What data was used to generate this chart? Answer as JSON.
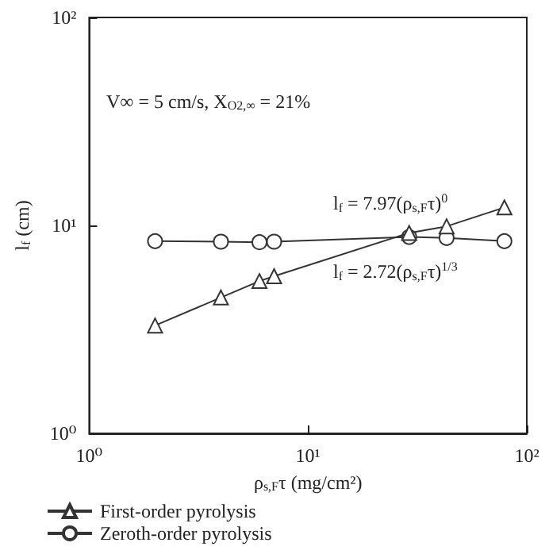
{
  "chart_data": {
    "type": "line",
    "xlabel": "ρ$_{s,F}$τ (mg/cm²)",
    "ylabel": "l$_{f}$ (cm)",
    "log": "xy",
    "xlim": [
      1,
      100
    ],
    "xticks": [
      {
        "value": 1,
        "label": "10⁰"
      },
      {
        "value": 10,
        "label": "10¹"
      },
      {
        "value": 100,
        "label": "10²"
      }
    ],
    "ylim": [
      1,
      100
    ],
    "yticks": [
      {
        "value": 1,
        "label": "10⁰"
      },
      {
        "value": 10,
        "label": "10¹"
      },
      {
        "value": 100,
        "label": "10²"
      }
    ],
    "grid": false,
    "legend": "bottom left",
    "annotations": [
      "V∞ = 5 cm/s, X$_{O2,∞}$ = 21%",
      "l$_{f}$ = 7.97(ρ$_{s,F}$τ)$^{0}$",
      "l$_{f}$ = 2.72(ρ$_{s,F}$τ)$^{1/3}$"
    ],
    "series": [
      {
        "name": "First-order pyrolysis",
        "color": "#333333",
        "marker": "triangle",
        "x": [
          2,
          4,
          6,
          7,
          29,
          43,
          79
        ],
        "values": [
          3.3,
          4.5,
          5.4,
          5.7,
          9.2,
          9.9,
          12.2
        ]
      },
      {
        "name": "Zeroth-order pyrolysis",
        "color": "#333333",
        "marker": "circle",
        "x": [
          2,
          4,
          6,
          7,
          29,
          43,
          79
        ],
        "values": [
          8.4,
          8.35,
          8.3,
          8.35,
          8.8,
          8.7,
          8.4
        ]
      }
    ]
  }
}
